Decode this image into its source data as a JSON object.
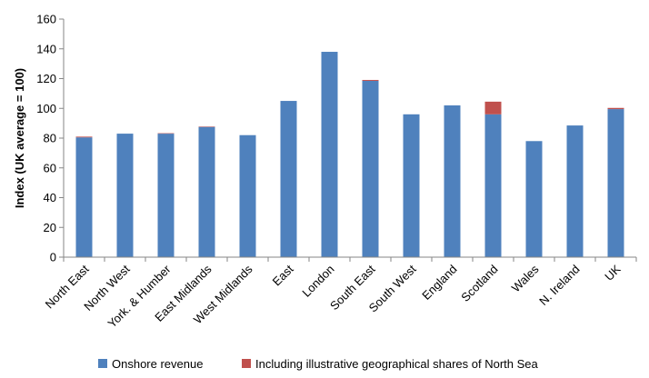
{
  "chart_data": {
    "type": "bar",
    "stacked": true,
    "title": "",
    "xlabel": "",
    "ylabel": "Index (UK average = 100)",
    "ylim": [
      0,
      160
    ],
    "yticks": [
      0,
      20,
      40,
      60,
      80,
      100,
      120,
      140,
      160
    ],
    "grid": false,
    "legend_position": "bottom",
    "categories": [
      "North East",
      "North West",
      "York. & Humber",
      "East Midlands",
      "West Midlands",
      "East",
      "London",
      "South East",
      "South West",
      "England",
      "Scotland",
      "Wales",
      "N. Ireland",
      "UK"
    ],
    "series": [
      {
        "name": "Onshore revenue",
        "color": "#4f81bd",
        "values": [
          80.5,
          83,
          83,
          87.5,
          82,
          105,
          138,
          118.5,
          96,
          102,
          96,
          78,
          88.5,
          99.5
        ]
      },
      {
        "name": "Including illustrative geographical shares of North Sea",
        "color": "#c0504d",
        "values": [
          0.5,
          0,
          0.3,
          0.3,
          0,
          0,
          0,
          0.6,
          0,
          0,
          8.5,
          0,
          0,
          0.8
        ]
      }
    ]
  }
}
